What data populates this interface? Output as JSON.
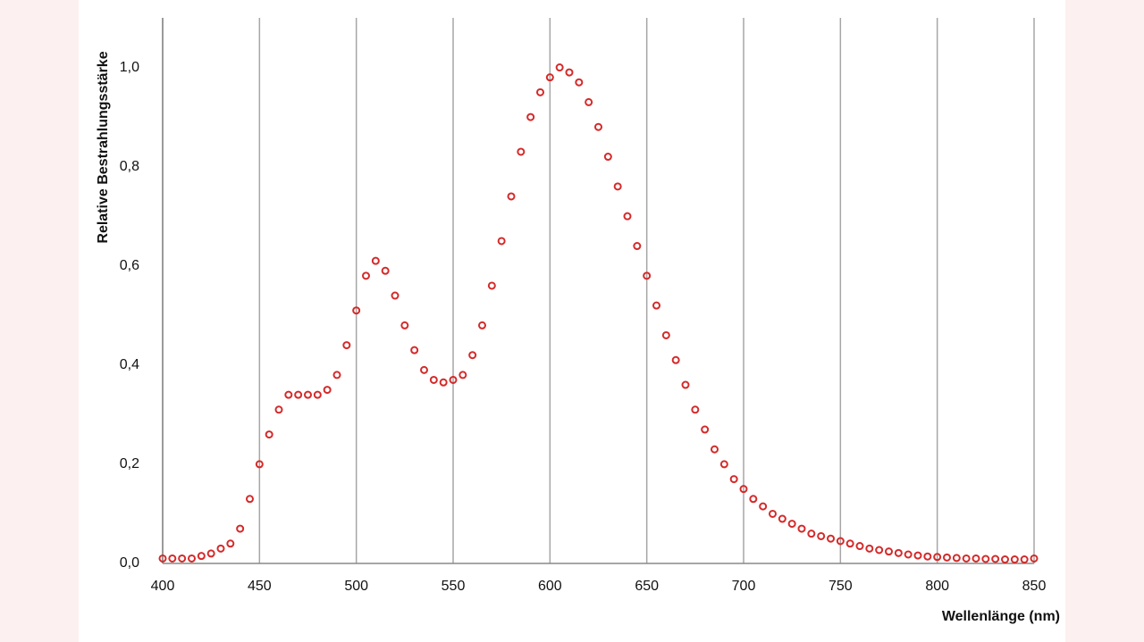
{
  "chart_data": {
    "type": "scatter",
    "x_label": "Wellenlänge (nm)",
    "y_label": "Relative Bestrahlungsstärke",
    "color": "#d42a2a",
    "x": [
      400,
      405,
      410,
      415,
      420,
      425,
      430,
      435,
      440,
      445,
      450,
      455,
      460,
      465,
      470,
      475,
      480,
      485,
      490,
      495,
      500,
      505,
      510,
      515,
      520,
      525,
      530,
      535,
      540,
      545,
      550,
      555,
      560,
      565,
      570,
      575,
      580,
      585,
      590,
      595,
      600,
      605,
      610,
      615,
      620,
      625,
      630,
      635,
      640,
      645,
      650,
      655,
      660,
      665,
      670,
      675,
      680,
      685,
      690,
      695,
      700,
      705,
      710,
      715,
      720,
      725,
      730,
      735,
      740,
      745,
      750,
      755,
      760,
      765,
      770,
      775,
      780,
      785,
      790,
      795,
      800,
      805,
      810,
      815,
      820,
      825,
      830,
      835,
      840,
      845,
      850
    ],
    "values": [
      0.01,
      0.01,
      0.01,
      0.01,
      0.015,
      0.02,
      0.03,
      0.04,
      0.07,
      0.13,
      0.2,
      0.26,
      0.31,
      0.34,
      0.34,
      0.34,
      0.34,
      0.35,
      0.38,
      0.44,
      0.51,
      0.58,
      0.61,
      0.59,
      0.54,
      0.48,
      0.43,
      0.39,
      0.37,
      0.365,
      0.37,
      0.38,
      0.42,
      0.48,
      0.56,
      0.65,
      0.74,
      0.83,
      0.9,
      0.95,
      0.98,
      1.0,
      0.99,
      0.97,
      0.93,
      0.88,
      0.82,
      0.76,
      0.7,
      0.64,
      0.58,
      0.52,
      0.46,
      0.41,
      0.36,
      0.31,
      0.27,
      0.23,
      0.2,
      0.17,
      0.15,
      0.13,
      0.115,
      0.1,
      0.09,
      0.08,
      0.07,
      0.06,
      0.055,
      0.05,
      0.045,
      0.04,
      0.035,
      0.03,
      0.027,
      0.024,
      0.021,
      0.018,
      0.016,
      0.014,
      0.013,
      0.012,
      0.011,
      0.01,
      0.01,
      0.009,
      0.009,
      0.008,
      0.008,
      0.008,
      0.01
    ],
    "xlim": [
      400,
      850
    ],
    "ylim": [
      0,
      1.1
    ],
    "xticks": [
      400,
      450,
      500,
      550,
      600,
      650,
      700,
      750,
      800,
      850
    ],
    "yticks": [
      {
        "value": 0,
        "label": "0,0"
      },
      {
        "value": 0.2,
        "label": "0,2"
      },
      {
        "value": 0.4,
        "label": "0,4"
      },
      {
        "value": 0.6,
        "label": "0,6"
      },
      {
        "value": 0.8,
        "label": "0,8"
      },
      {
        "value": 1.0,
        "label": "1,0"
      }
    ],
    "grid": true
  }
}
